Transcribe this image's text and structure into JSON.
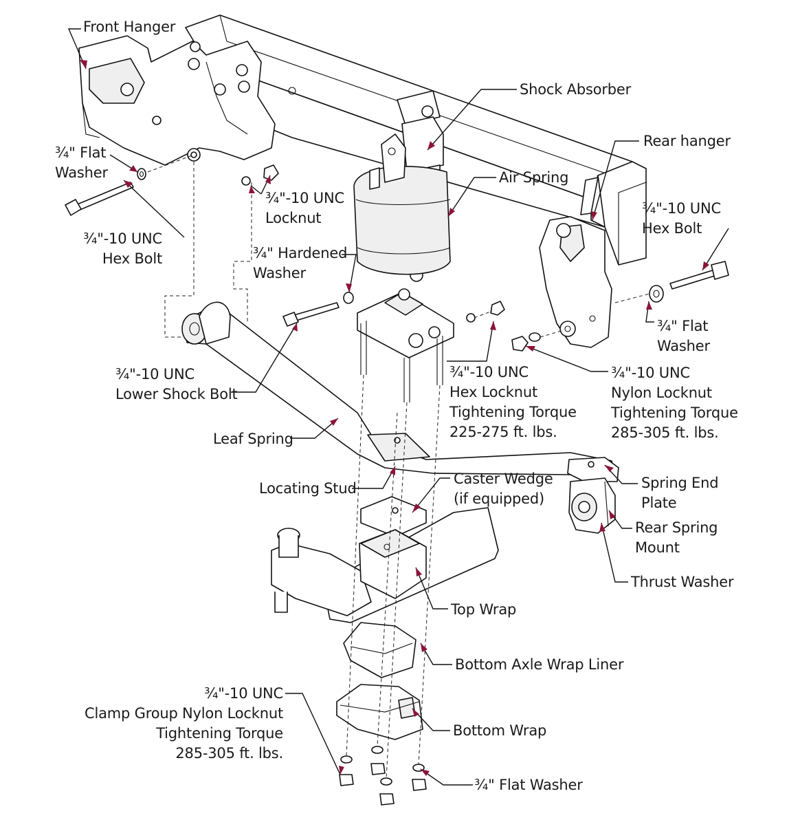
{
  "colors": {
    "accent": "#8b1538",
    "line": "#111111",
    "background": "#ffffff"
  },
  "labels": {
    "front_hanger": "Front Hanger",
    "flat_washer_top": "¾\" Flat\nWasher",
    "hex_bolt_left": "¾\"-10 UNC\nHex Bolt",
    "locknut_top": "¾\"-10 UNC\nLocknut",
    "hardened_washer": "¾\" Hardened\nWasher",
    "shock_absorber": "Shock Absorber",
    "rear_hanger": "Rear hanger",
    "air_spring": "Air Spring",
    "hex_bolt_right": "¾\"-10 UNC\nHex Bolt",
    "flat_washer_right": "¾\" Flat\nWasher",
    "lower_shock_bolt": "¾\"-10 UNC\nLower Shock Bolt",
    "hex_locknut": "¾\"-10 UNC\nHex Locknut\nTightening Torque\n225-275 ft. lbs.",
    "nylon_locknut": "¾\"-10 UNC\nNylon Locknut\nTightening Torque\n285-305 ft. lbs.",
    "leaf_spring": "Leaf Spring",
    "spring_end_plate": "Spring End\nPlate",
    "locating_stud": "Locating Stud",
    "caster_wedge": "Caster Wedge\n(if equipped)",
    "rear_spring_mount": "Rear Spring\nMount",
    "thrust_washer": "Thrust Washer",
    "top_wrap": "Top Wrap",
    "bottom_axle_wrap_liner": "Bottom Axle Wrap Liner",
    "clamp_group_locknut": "¾\"-10 UNC\nClamp Group Nylon Locknut\nTightening Torque\n285-305 ft. lbs.",
    "bottom_wrap": "Bottom Wrap",
    "flat_washer_bottom": "¾\" Flat Washer"
  }
}
